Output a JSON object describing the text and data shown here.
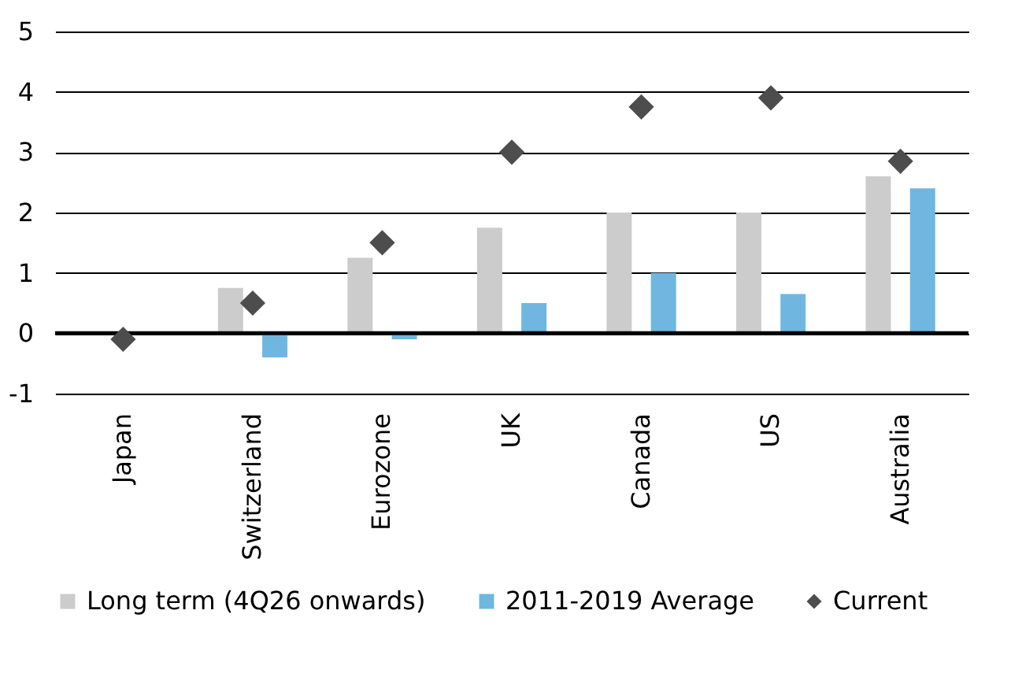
{
  "chart_data": {
    "type": "bar",
    "categories": [
      "Japan",
      "Switzerland",
      "Eurozone",
      "UK",
      "Canada",
      "US",
      "Australia"
    ],
    "series": [
      {
        "name": "Long term (4Q26 onwards)",
        "color": "#cccccc",
        "values": [
          null,
          0.75,
          1.25,
          1.75,
          2.0,
          2.0,
          2.6
        ]
      },
      {
        "name": "2011-2019 Average",
        "color": "#6fb7e0",
        "values": [
          null,
          -0.4,
          -0.1,
          0.5,
          1.0,
          0.65,
          2.4
        ]
      },
      {
        "name": "Current",
        "type": "scatter",
        "marker": "diamond",
        "color": "#4d4d4d",
        "values": [
          -0.1,
          0.5,
          1.5,
          3.0,
          3.75,
          3.9,
          2.85
        ]
      }
    ],
    "ylim": [
      -1,
      5
    ],
    "yticks": [
      -1,
      0,
      1,
      2,
      3,
      4,
      5
    ],
    "grid": "y",
    "legend": "bottom",
    "ref_lines": [
      {
        "axis": "y",
        "value": 0,
        "color": "#000000"
      }
    ]
  }
}
